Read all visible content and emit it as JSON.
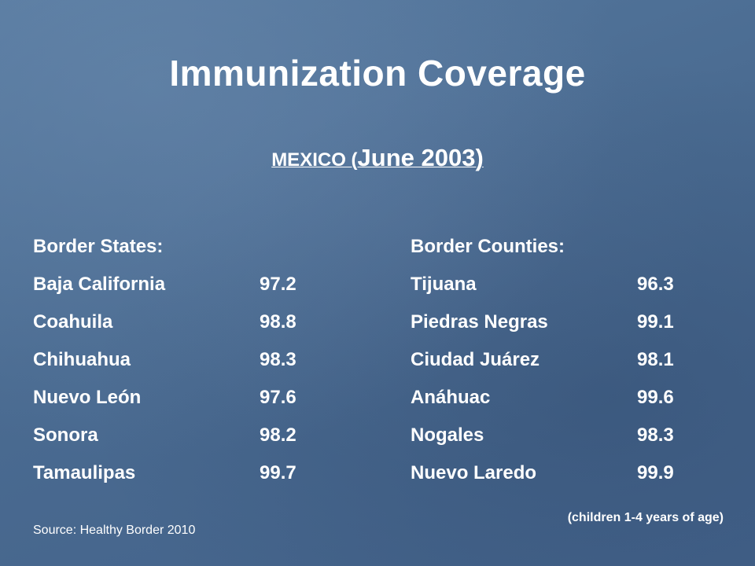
{
  "slide": {
    "title": "Immunization Coverage",
    "subtitle_prefix": "MEXICO (",
    "subtitle_rest": "June 2003)",
    "left": {
      "heading": "Border States:",
      "rows": [
        {
          "name": "Baja California",
          "value": "97.2"
        },
        {
          "name": "Coahuila",
          "value": "98.8"
        },
        {
          "name": "Chihuahua",
          "value": "98.3"
        },
        {
          "name": "Nuevo León",
          "value": "97.6"
        },
        {
          "name": "Sonora",
          "value": "98.2"
        },
        {
          "name": "Tamaulipas",
          "value": "99.7"
        }
      ]
    },
    "right": {
      "heading": "Border Counties:",
      "rows": [
        {
          "name": "Tijuana",
          "value": "96.3"
        },
        {
          "name": "Piedras Negras",
          "value": "99.1"
        },
        {
          "name": "Ciudad Juárez",
          "value": "98.1"
        },
        {
          "name": "Anáhuac",
          "value": "99.6"
        },
        {
          "name": "Nogales",
          "value": "98.3"
        },
        {
          "name": "Nuevo Laredo",
          "value": "99.9"
        }
      ]
    },
    "note": "(children 1-4 years of age)",
    "source": "Source:  Healthy Border 2010"
  },
  "colors": {
    "background": "#4b6d93",
    "text": "#ffffff"
  }
}
